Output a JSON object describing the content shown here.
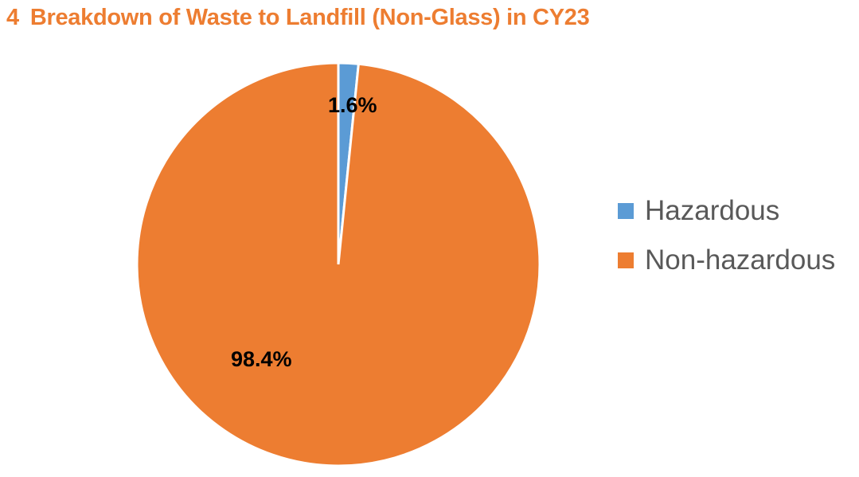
{
  "chart_data": {
    "type": "pie",
    "title": "Breakdown of Waste to Landfill (Non-Glass) in CY23",
    "figure_number": "4",
    "categories": [
      "Hazardous",
      "Non-hazardous"
    ],
    "values": [
      1.6,
      98.4
    ],
    "unit": "%",
    "data_labels": [
      "1.6%",
      "98.4%"
    ],
    "colors": [
      "#5B9BD5",
      "#ED7D31"
    ],
    "legend_position": "right",
    "start_angle_deg": 0,
    "direction": "clockwise"
  },
  "title": {
    "number": "4",
    "text": "Breakdown of Waste to Landfill (Non-Glass) in CY23"
  },
  "labels": {
    "hazardous": "1.6%",
    "non_hazardous": "98.4%"
  },
  "legend": [
    {
      "label": "Hazardous",
      "color": "#5B9BD5"
    },
    {
      "label": "Non-hazardous",
      "color": "#ED7D31"
    }
  ]
}
